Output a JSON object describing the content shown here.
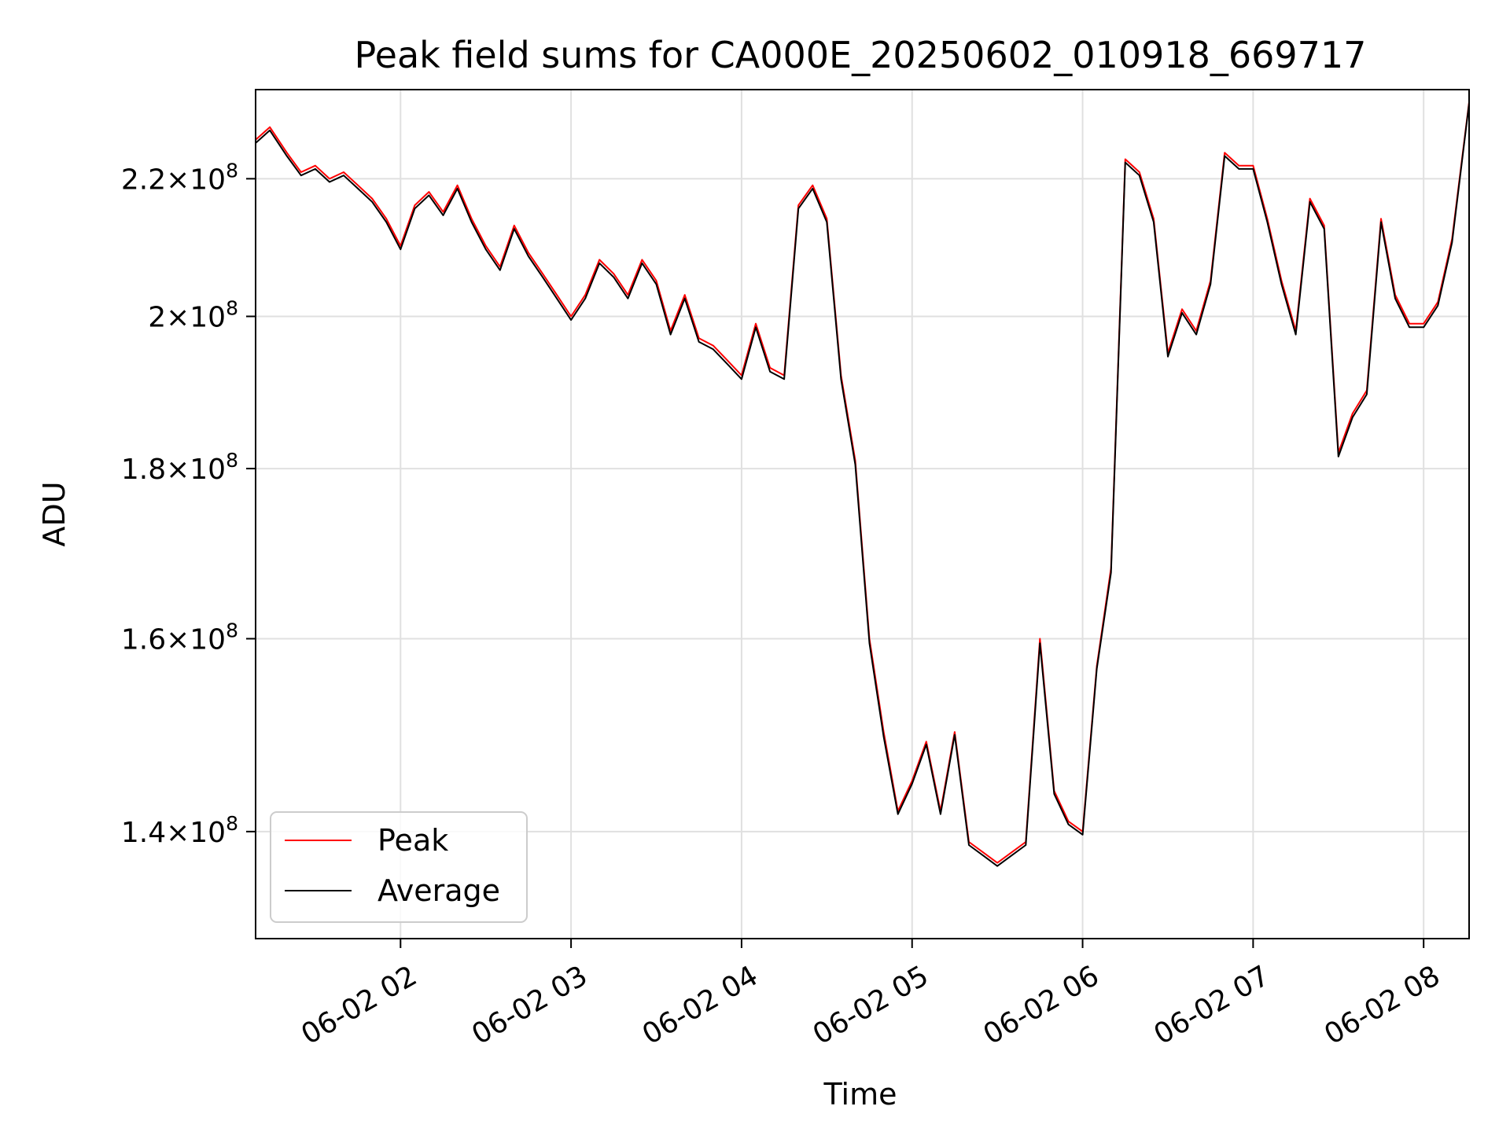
{
  "chart_data": {
    "type": "line",
    "title": "Peak field sums for CA000E_20250602_010918_669717",
    "xlabel": "Time",
    "ylabel": "ADU",
    "y_scale": "log",
    "xlim": [
      "06-02 01:09",
      "06-02 08:16"
    ],
    "ylim": [
      130000000,
      234000000
    ],
    "grid": true,
    "legend_position": "lower-left",
    "x_ticks": [
      {
        "time": "06-02 02:00",
        "label": "06-02 02"
      },
      {
        "time": "06-02 03:00",
        "label": "06-02 03"
      },
      {
        "time": "06-02 04:00",
        "label": "06-02 04"
      },
      {
        "time": "06-02 05:00",
        "label": "06-02 05"
      },
      {
        "time": "06-02 06:00",
        "label": "06-02 06"
      },
      {
        "time": "06-02 07:00",
        "label": "06-02 07"
      },
      {
        "time": "06-02 08:00",
        "label": "06-02 08"
      }
    ],
    "y_ticks": [
      {
        "value": 140000000,
        "mantissa": "1.4",
        "base": "10",
        "exponent": "8"
      },
      {
        "value": 160000000,
        "mantissa": "1.6",
        "base": "10",
        "exponent": "8"
      },
      {
        "value": 180000000,
        "mantissa": "1.8",
        "base": "10",
        "exponent": "8"
      },
      {
        "value": 200000000,
        "mantissa": "2",
        "base": "10",
        "exponent": "8"
      },
      {
        "value": 220000000,
        "mantissa": "2.2",
        "base": "10",
        "exponent": "8"
      }
    ],
    "series": [
      {
        "name": "Peak",
        "color": "#ff0000",
        "x": [
          "06-02 01:09",
          "06-02 01:14",
          "06-02 01:20",
          "06-02 01:25",
          "06-02 01:30",
          "06-02 01:35",
          "06-02 01:40",
          "06-02 01:45",
          "06-02 01:50",
          "06-02 01:55",
          "06-02 02:00",
          "06-02 02:05",
          "06-02 02:10",
          "06-02 02:15",
          "06-02 02:20",
          "06-02 02:25",
          "06-02 02:30",
          "06-02 02:35",
          "06-02 02:40",
          "06-02 02:45",
          "06-02 02:50",
          "06-02 02:55",
          "06-02 03:00",
          "06-02 03:05",
          "06-02 03:10",
          "06-02 03:15",
          "06-02 03:20",
          "06-02 03:25",
          "06-02 03:30",
          "06-02 03:35",
          "06-02 03:40",
          "06-02 03:45",
          "06-02 03:50",
          "06-02 03:55",
          "06-02 04:00",
          "06-02 04:05",
          "06-02 04:10",
          "06-02 04:15",
          "06-02 04:20",
          "06-02 04:25",
          "06-02 04:30",
          "06-02 04:35",
          "06-02 04:40",
          "06-02 04:45",
          "06-02 04:50",
          "06-02 04:55",
          "06-02 05:00",
          "06-02 05:05",
          "06-02 05:10",
          "06-02 05:15",
          "06-02 05:20",
          "06-02 05:25",
          "06-02 05:30",
          "06-02 05:35",
          "06-02 05:40",
          "06-02 05:45",
          "06-02 05:50",
          "06-02 05:55",
          "06-02 06:00",
          "06-02 06:05",
          "06-02 06:10",
          "06-02 06:15",
          "06-02 06:20",
          "06-02 06:25",
          "06-02 06:30",
          "06-02 06:35",
          "06-02 06:40",
          "06-02 06:45",
          "06-02 06:50",
          "06-02 06:55",
          "06-02 07:00",
          "06-02 07:05",
          "06-02 07:10",
          "06-02 07:15",
          "06-02 07:20",
          "06-02 07:25",
          "06-02 07:30",
          "06-02 07:35",
          "06-02 07:40",
          "06-02 07:45",
          "06-02 07:50",
          "06-02 07:55",
          "06-02 08:00",
          "06-02 08:05",
          "06-02 08:10",
          "06-02 08:16"
        ],
        "values": [
          226000000,
          228000000,
          224000000,
          221000000,
          222000000,
          220000000,
          221000000,
          219000000,
          217000000,
          214000000,
          210000000,
          216000000,
          218000000,
          215000000,
          219000000,
          214000000,
          210000000,
          207000000,
          213000000,
          209000000,
          206000000,
          203000000,
          200000000,
          203000000,
          208000000,
          206000000,
          203000000,
          208000000,
          205000000,
          198000000,
          203000000,
          197000000,
          196000000,
          194000000,
          192000000,
          199000000,
          193000000,
          192000000,
          216000000,
          219000000,
          214000000,
          192000000,
          181000000,
          160000000,
          150000000,
          142000000,
          145000000,
          149000000,
          142000000,
          150000000,
          139000000,
          138000000,
          137000000,
          138000000,
          139000000,
          160000000,
          144000000,
          141000000,
          140000000,
          157000000,
          168000000,
          223000000,
          221000000,
          214000000,
          195000000,
          201000000,
          198000000,
          205000000,
          224000000,
          222000000,
          222000000,
          214000000,
          205000000,
          198000000,
          217000000,
          213000000,
          182000000,
          187000000,
          190000000,
          214000000,
          203000000,
          199000000,
          199000000,
          202000000,
          211000000,
          232000000
        ]
      },
      {
        "name": "Average",
        "color": "#000000",
        "x": [
          "06-02 01:09",
          "06-02 01:14",
          "06-02 01:20",
          "06-02 01:25",
          "06-02 01:30",
          "06-02 01:35",
          "06-02 01:40",
          "06-02 01:45",
          "06-02 01:50",
          "06-02 01:55",
          "06-02 02:00",
          "06-02 02:05",
          "06-02 02:10",
          "06-02 02:15",
          "06-02 02:20",
          "06-02 02:25",
          "06-02 02:30",
          "06-02 02:35",
          "06-02 02:40",
          "06-02 02:45",
          "06-02 02:50",
          "06-02 02:55",
          "06-02 03:00",
          "06-02 03:05",
          "06-02 03:10",
          "06-02 03:15",
          "06-02 03:20",
          "06-02 03:25",
          "06-02 03:30",
          "06-02 03:35",
          "06-02 03:40",
          "06-02 03:45",
          "06-02 03:50",
          "06-02 03:55",
          "06-02 04:00",
          "06-02 04:05",
          "06-02 04:10",
          "06-02 04:15",
          "06-02 04:20",
          "06-02 04:25",
          "06-02 04:30",
          "06-02 04:35",
          "06-02 04:40",
          "06-02 04:45",
          "06-02 04:50",
          "06-02 04:55",
          "06-02 05:00",
          "06-02 05:05",
          "06-02 05:10",
          "06-02 05:15",
          "06-02 05:20",
          "06-02 05:25",
          "06-02 05:30",
          "06-02 05:35",
          "06-02 05:40",
          "06-02 05:45",
          "06-02 05:50",
          "06-02 05:55",
          "06-02 06:00",
          "06-02 06:05",
          "06-02 06:10",
          "06-02 06:15",
          "06-02 06:20",
          "06-02 06:25",
          "06-02 06:30",
          "06-02 06:35",
          "06-02 06:40",
          "06-02 06:45",
          "06-02 06:50",
          "06-02 06:55",
          "06-02 07:00",
          "06-02 07:05",
          "06-02 07:10",
          "06-02 07:15",
          "06-02 07:20",
          "06-02 07:25",
          "06-02 07:30",
          "06-02 07:35",
          "06-02 07:40",
          "06-02 07:45",
          "06-02 07:50",
          "06-02 07:55",
          "06-02 08:00",
          "06-02 08:05",
          "06-02 08:10",
          "06-02 08:16"
        ],
        "values": [
          225500000,
          227500000,
          223500000,
          220500000,
          221500000,
          219500000,
          220500000,
          218500000,
          216500000,
          213500000,
          209500000,
          215500000,
          217500000,
          214500000,
          218500000,
          213500000,
          209500000,
          206500000,
          212500000,
          208500000,
          205500000,
          202500000,
          199500000,
          202500000,
          207500000,
          205500000,
          202500000,
          207500000,
          204500000,
          197500000,
          202500000,
          196500000,
          195500000,
          193500000,
          191500000,
          198500000,
          192500000,
          191500000,
          215500000,
          218500000,
          213500000,
          191500000,
          180500000,
          159500000,
          149500000,
          141700000,
          144700000,
          148700000,
          141700000,
          149700000,
          138700000,
          137700000,
          136700000,
          137700000,
          138700000,
          159500000,
          143700000,
          140700000,
          139700000,
          156700000,
          167500000,
          222500000,
          220500000,
          213500000,
          194500000,
          200500000,
          197500000,
          204500000,
          223500000,
          221500000,
          221500000,
          213500000,
          204500000,
          197500000,
          216500000,
          212500000,
          181500000,
          186500000,
          189500000,
          213500000,
          202500000,
          198500000,
          198500000,
          201500000,
          210500000,
          231800000
        ]
      }
    ]
  },
  "legend": [
    {
      "label": "Peak",
      "color": "#ff0000"
    },
    {
      "label": "Average",
      "color": "#000000"
    }
  ]
}
